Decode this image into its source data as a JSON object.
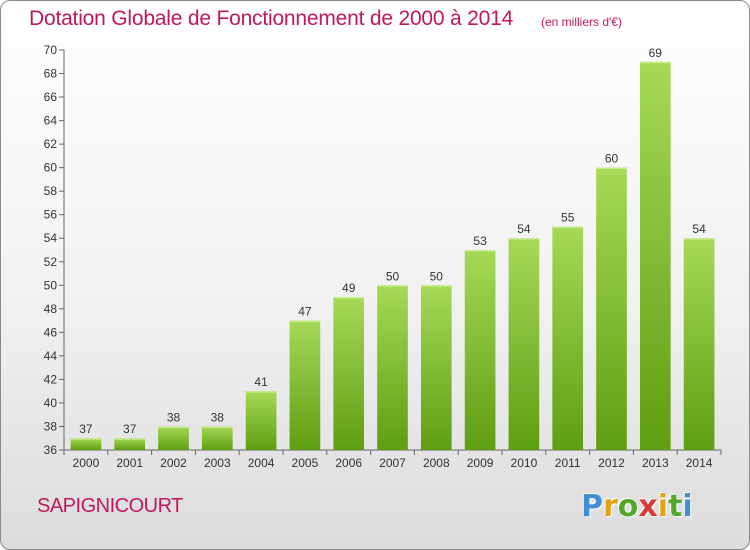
{
  "header": {
    "title": "Dotation Globale de Fonctionnement de 2000 à 2014",
    "subtitle": "(en milliers d'€)"
  },
  "footer": {
    "commune": "SAPIGNICOURT",
    "logo_text": "Proxiti"
  },
  "colors": {
    "title": "#c1185b",
    "bar_light": "#9fd34d",
    "bar_dark": "#5e9e12"
  },
  "chart_data": {
    "type": "bar",
    "title": "Dotation Globale de Fonctionnement de 2000 à 2014",
    "subtitle": "(en milliers d'€)",
    "xlabel": "",
    "ylabel": "",
    "ylim": [
      36,
      70
    ],
    "yticks": [
      36,
      38,
      40,
      42,
      44,
      46,
      48,
      50,
      52,
      54,
      56,
      58,
      60,
      62,
      64,
      66,
      68,
      70
    ],
    "grid": false,
    "categories": [
      "2000",
      "2001",
      "2002",
      "2003",
      "2004",
      "2005",
      "2006",
      "2007",
      "2008",
      "2009",
      "2010",
      "2011",
      "2012",
      "2013",
      "2014"
    ],
    "values": [
      37,
      37,
      38,
      38,
      41,
      47,
      49,
      50,
      50,
      53,
      54,
      55,
      60,
      69,
      54
    ],
    "data_labels": true
  }
}
